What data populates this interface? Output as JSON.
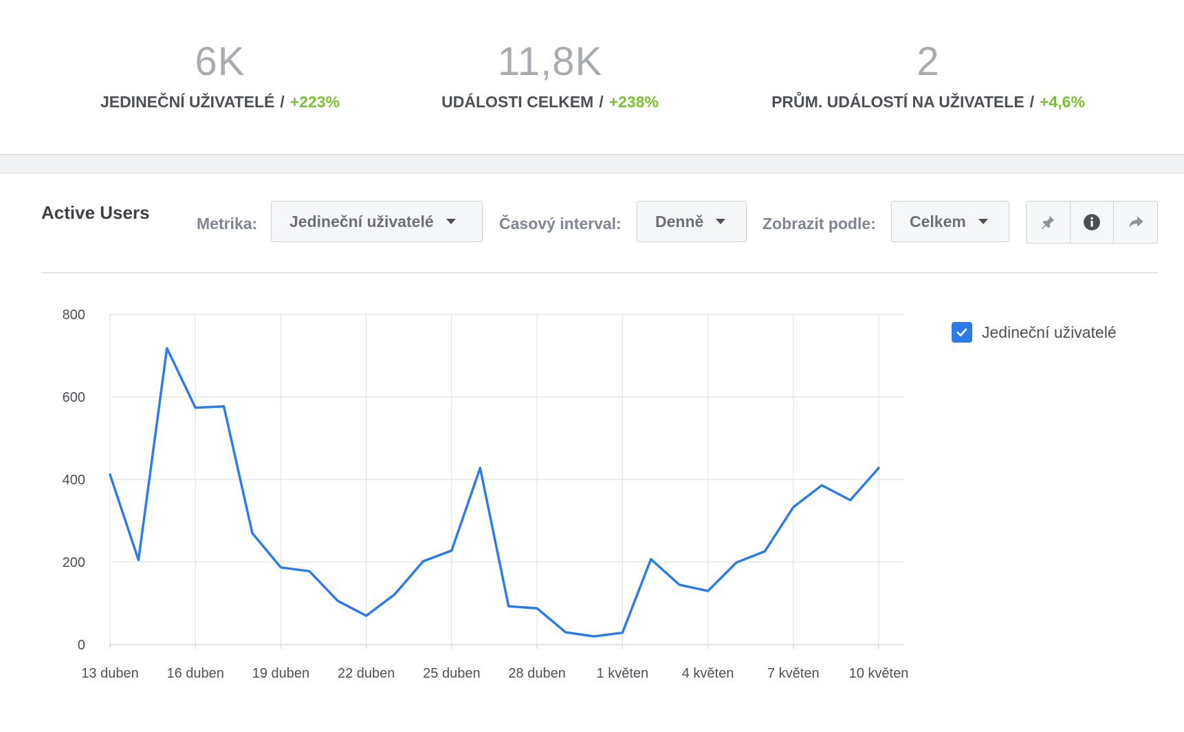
{
  "stats": [
    {
      "value": "6K",
      "label": "JEDINEČNÍ UŽIVATELÉ",
      "separator": "/",
      "change": "+223%"
    },
    {
      "value": "11,8K",
      "label": "UDÁLOSTI CELKEM",
      "separator": "/",
      "change": "+238%"
    },
    {
      "value": "2",
      "label": "PRŮM. UDÁLOSTÍ NA UŽIVATELE",
      "separator": "/",
      "change": "+4,6%"
    }
  ],
  "panel": {
    "title": "Active Users",
    "metric_label": "Metrika:",
    "metric_value": "Jedineční uživatelé",
    "interval_label": "Časový interval:",
    "interval_value": "Denně",
    "view_label": "Zobrazit podle:",
    "view_value": "Celkem",
    "icons": [
      "pin-icon",
      "info-icon",
      "share-icon"
    ]
  },
  "legend": {
    "label": "Jedineční uživatelé",
    "checked": true
  },
  "colors": {
    "accent": "#2d7be6",
    "positive": "#78c22b",
    "grid": "#e6e7ea"
  },
  "chart_data": {
    "type": "line",
    "x": [
      "13 duben",
      "14 duben",
      "15 duben",
      "16 duben",
      "17 duben",
      "18 duben",
      "19 duben",
      "20 duben",
      "21 duben",
      "22 duben",
      "23 duben",
      "24 duben",
      "25 duben",
      "26 duben",
      "27 duben",
      "28 duben",
      "29 duben",
      "30 duben",
      "1 květen",
      "2 květen",
      "3 květen",
      "4 květen",
      "5 květen",
      "6 květen",
      "7 květen",
      "8 květen",
      "9 květen",
      "10 květen"
    ],
    "tick_labels": [
      "13 duben",
      "16 duben",
      "19 duben",
      "22 duben",
      "25 duben",
      "28 duben",
      "1 květen",
      "4 květen",
      "7 květen",
      "10 květen"
    ],
    "series": [
      {
        "name": "Jedineční uživatelé",
        "values": [
          412,
          205,
          718,
          574,
          577,
          270,
          187,
          178,
          106,
          70,
          122,
          202,
          228,
          428,
          93,
          88,
          30,
          20,
          29,
          207,
          145,
          130,
          199,
          226,
          333,
          386,
          350,
          428
        ]
      }
    ],
    "ylim": [
      0,
      800
    ],
    "yticks": [
      0,
      200,
      400,
      600,
      800
    ],
    "grid": true,
    "legend_position": "right"
  }
}
